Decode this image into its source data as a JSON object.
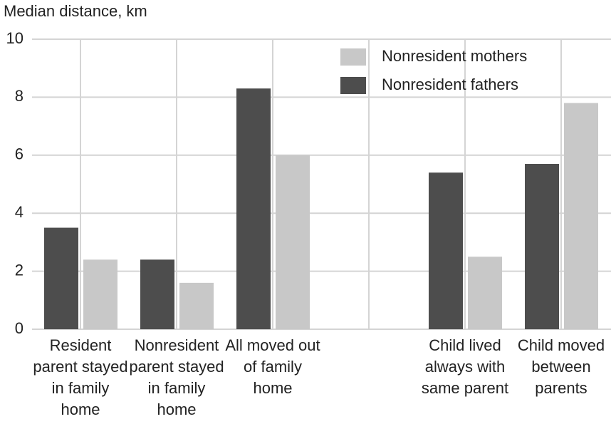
{
  "chart_data": {
    "type": "bar",
    "y_axis_label": "Median distance, km",
    "categories": [
      "Resident parent stayed in family home",
      "Nonresident parent stayed in family home",
      "All moved out of family home",
      null,
      "Child lived always with same parent",
      "Child moved between parents"
    ],
    "series": [
      {
        "name": "Nonresident mothers",
        "color": "#c8c8c8",
        "values": [
          2.4,
          1.6,
          6.0,
          null,
          2.5,
          7.8
        ]
      },
      {
        "name": "Nonresident fathers",
        "color": "#4d4d4d",
        "values": [
          3.5,
          2.4,
          8.3,
          null,
          5.4,
          5.7
        ]
      }
    ],
    "ylim": [
      0,
      10
    ],
    "yticks": [
      0,
      2,
      4,
      6,
      8,
      10
    ],
    "grid": true,
    "legend": "top-right"
  }
}
